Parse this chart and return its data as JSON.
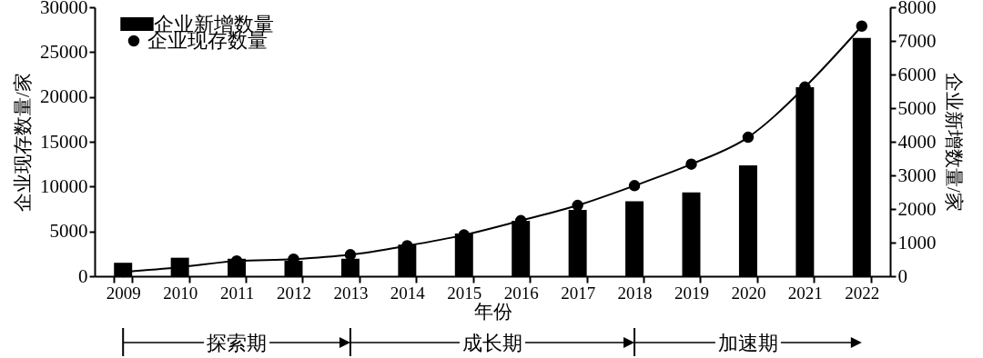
{
  "chart_data": {
    "type": "bar",
    "xlabel": "年份",
    "ylabel": "企业现存数量/家",
    "y2label": "企业新增数量/家",
    "categories": [
      "2009",
      "2010",
      "2011",
      "2012",
      "2013",
      "2014",
      "2015",
      "2016",
      "2017",
      "2018",
      "2019",
      "2020",
      "2021",
      "2022"
    ],
    "series": [
      {
        "name": "企业新增数量",
        "axis": "y2",
        "color": "#000000",
        "values": [
          400,
          550,
          520,
          460,
          520,
          940,
          1270,
          1650,
          1970,
          2230,
          2490,
          3300,
          5620,
          7090
        ]
      },
      {
        "name": "企业现存数量",
        "type": "line",
        "axis": "y",
        "color": "#000000",
        "values": [
          500,
          1000,
          1700,
          1900,
          2400,
          3400,
          4600,
          6200,
          7900,
          10100,
          12500,
          15500,
          21100,
          27900
        ]
      }
    ],
    "ylim": [
      0,
      30000
    ],
    "yticks": [
      0,
      5000,
      10000,
      15000,
      20000,
      25000,
      30000
    ],
    "y2lim": [
      0,
      8000
    ],
    "y2ticks": [
      0,
      1000,
      2000,
      3000,
      4000,
      5000,
      6000,
      7000,
      8000
    ],
    "annotations": [
      "探索期",
      "成长期",
      "加速期"
    ],
    "marker": "circle",
    "line_style": "solid",
    "grid": false,
    "legend": "top left"
  }
}
